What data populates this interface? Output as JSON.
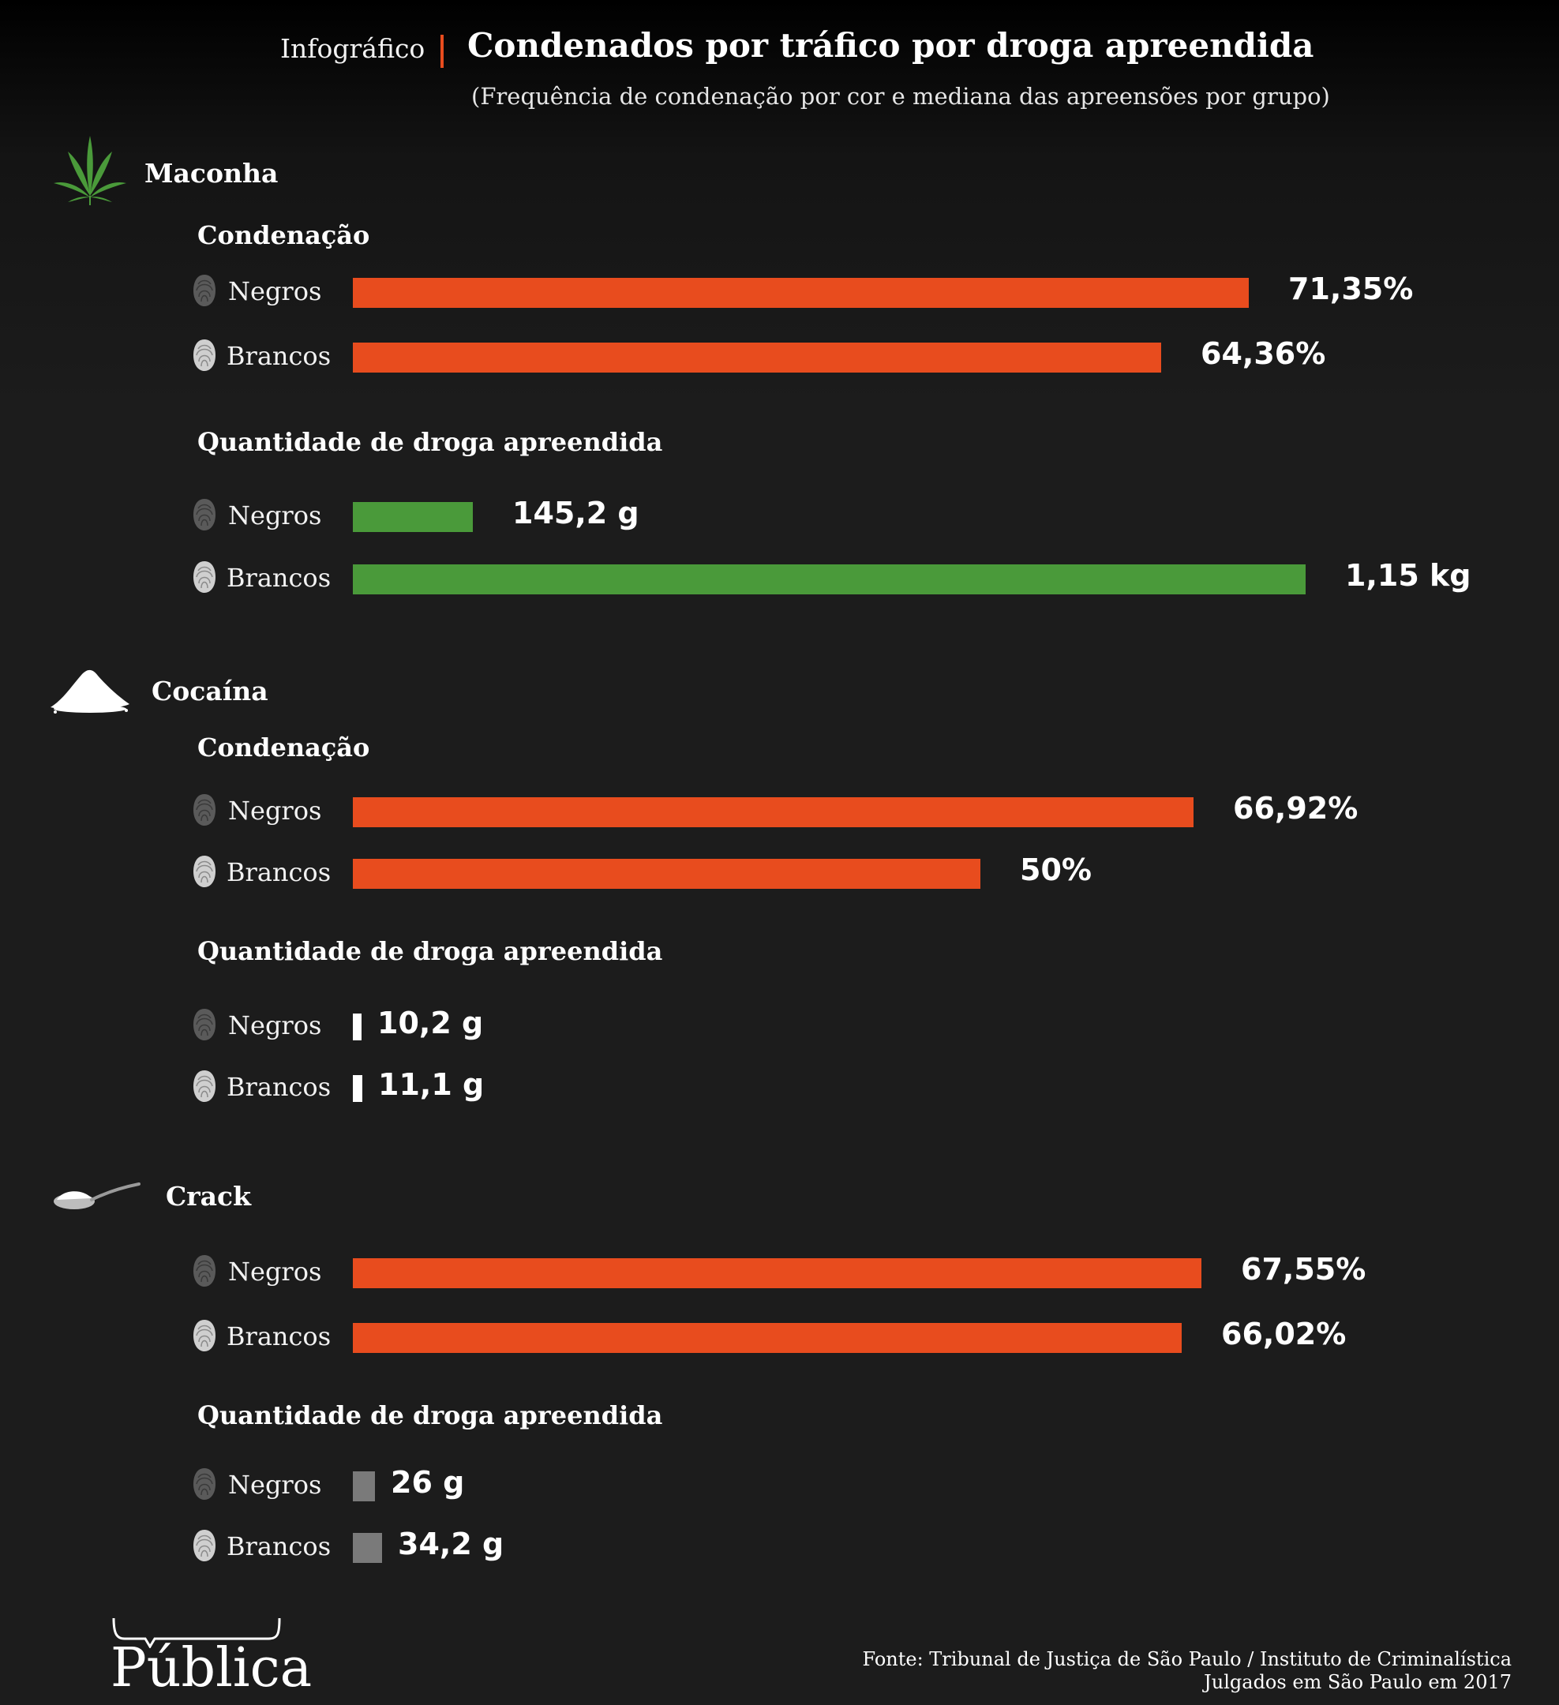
{
  "header": {
    "kicker": "Infográfico",
    "title": "Condenados por tráfico por droga apreendida",
    "subtitle": "(Frequência de condenação por cor e mediana das apreensões por grupo)"
  },
  "colors": {
    "condenacao_bar": "#e84c1e",
    "maconha_qty_bar": "#4a9a3a",
    "cocaina_qty_bar": "#ffffff",
    "crack_qty_bar": "#7a7a7a",
    "separator": "#e84c1e"
  },
  "icons": {
    "maconha": "cannabis-leaf-icon",
    "cocaina": "powder-pile-icon",
    "crack": "spoon-icon",
    "groups": "fingerprint-icon"
  },
  "chart_data": [
    {
      "type": "bar",
      "orientation": "horizontal",
      "drug": "Maconha",
      "title": "Condenação",
      "categories": [
        "Negros",
        "Brancos"
      ],
      "values": [
        71.35,
        64.36
      ],
      "labels": [
        "71,35%",
        "64,36%"
      ],
      "unit": "%"
    },
    {
      "type": "bar",
      "orientation": "horizontal",
      "drug": "Maconha",
      "title": "Quantidade de droga apreendida",
      "categories": [
        "Negros",
        "Brancos"
      ],
      "values": [
        145.2,
        1150
      ],
      "labels": [
        "145,2 g",
        "1,15 kg"
      ],
      "unit": "g"
    },
    {
      "type": "bar",
      "orientation": "horizontal",
      "drug": "Cocaína",
      "title": "Condenação",
      "categories": [
        "Negros",
        "Brancos"
      ],
      "values": [
        66.92,
        50
      ],
      "labels": [
        "66,92%",
        "50%"
      ],
      "unit": "%"
    },
    {
      "type": "bar",
      "orientation": "horizontal",
      "drug": "Cocaína",
      "title": "Quantidade de droga apreendida",
      "categories": [
        "Negros",
        "Brancos"
      ],
      "values": [
        10.2,
        11.1
      ],
      "labels": [
        "10,2 g",
        "11,1 g"
      ],
      "unit": "g"
    },
    {
      "type": "bar",
      "orientation": "horizontal",
      "drug": "Crack",
      "title": "",
      "categories": [
        "Negros",
        "Brancos"
      ],
      "values": [
        67.55,
        66.02
      ],
      "labels": [
        "67,55%",
        "66,02%"
      ],
      "unit": "%"
    },
    {
      "type": "bar",
      "orientation": "horizontal",
      "drug": "Crack",
      "title": "Quantidade de droga apreendida",
      "categories": [
        "Negros",
        "Brancos"
      ],
      "values": [
        26,
        34.2
      ],
      "labels": [
        "26 g",
        "34,2 g"
      ],
      "unit": "g"
    }
  ],
  "footer": {
    "source_line1": "Fonte: Tribunal de Justiça de São Paulo / Instituto de Criminalística",
    "source_line2": "Julgados em São Paulo em 2017",
    "logo": "Pública"
  }
}
